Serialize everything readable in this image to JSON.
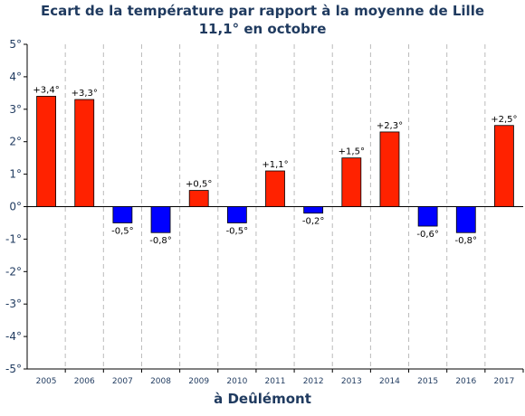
{
  "chart_data": {
    "type": "bar",
    "title": "Ecart de la température par rapport à la moyenne de Lille",
    "subtitle": "11,1° en octobre",
    "xlabel": "à Deûlémont",
    "ylabel": "",
    "categories": [
      "2005",
      "2006",
      "2007",
      "2008",
      "2009",
      "2010",
      "2011",
      "2012",
      "2013",
      "2014",
      "2015",
      "2016",
      "2017"
    ],
    "values": [
      3.4,
      3.3,
      -0.5,
      -0.8,
      0.5,
      -0.5,
      1.1,
      -0.2,
      1.5,
      2.3,
      -0.6,
      -0.8,
      2.5
    ],
    "data_labels": [
      "+3,4°",
      "+3,3°",
      "-0,5°",
      "-0,8°",
      "+0,5°",
      "-0,5°",
      "+1,1°",
      "-0,2°",
      "+1,5°",
      "+2,3°",
      "-0,6°",
      "-0,8°",
      "+2,5°"
    ],
    "ylim": [
      -5,
      5
    ],
    "yticks": [
      {
        "value": 5,
        "label": "5°"
      },
      {
        "value": 4,
        "label": "4°"
      },
      {
        "value": 3,
        "label": "3°"
      },
      {
        "value": 2,
        "label": "2°"
      },
      {
        "value": 1,
        "label": "1°"
      },
      {
        "value": 0,
        "label": "0°"
      },
      {
        "value": -1,
        "label": "-1°"
      },
      {
        "value": -2,
        "label": "-2°"
      },
      {
        "value": -3,
        "label": "-3°"
      },
      {
        "value": -4,
        "label": "-4°"
      },
      {
        "value": -5,
        "label": "-5°"
      }
    ],
    "grid": "vertical dashed",
    "colors": {
      "positive": "#ff2200",
      "negative": "#0000ff",
      "text": "#1f3a5f",
      "grid": "#bbbbbb"
    }
  }
}
